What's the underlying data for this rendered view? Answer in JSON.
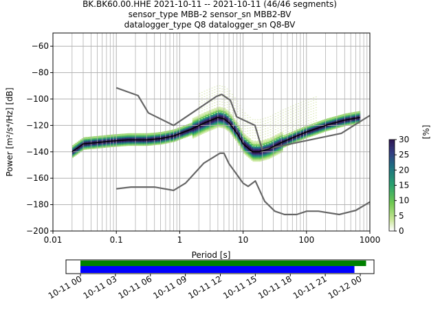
{
  "title_lines": [
    "BK.BK60.00.HHE   2021-10-11 -- 2021-10-11  (46/46 segments)",
    "sensor_type MBB-2 sensor_sn MBB2-BV",
    "datalogger_type Q8 datalogger_sn Q8-BV"
  ],
  "chart_data": {
    "type": "heatmap",
    "xlabel": "Period [s]",
    "ylabel": "Power [m²/s⁴/Hz] [dB]",
    "x_scale": "log",
    "xlim": [
      0.01,
      1000
    ],
    "ylim": [
      -200,
      -50
    ],
    "x_ticks": [
      0.01,
      0.1,
      1,
      10,
      100,
      1000
    ],
    "x_tick_labels": [
      "0.01",
      "0.1",
      "1",
      "10",
      "100",
      "1000"
    ],
    "y_ticks": [
      -200,
      -180,
      -160,
      -140,
      -120,
      -100,
      -80,
      -60
    ],
    "y_tick_labels": [
      "−200",
      "−180",
      "−160",
      "−140",
      "−120",
      "−100",
      "−80",
      "−60"
    ],
    "grid": true,
    "colorbar": {
      "label": "[%]",
      "range": [
        0,
        30
      ],
      "ticks": [
        0,
        5,
        10,
        15,
        20,
        25,
        30
      ],
      "tick_labels": [
        "0",
        "5",
        "10",
        "15",
        "20",
        "25",
        "30"
      ],
      "colormap": "pqlx (white-green-teal-purple)"
    },
    "mean_curve": {
      "color": "#000000",
      "period": [
        0.02,
        0.03,
        0.05,
        0.08,
        0.15,
        0.3,
        0.5,
        0.8,
        1.5,
        2.5,
        4,
        5,
        6,
        8,
        10,
        14,
        18,
        25,
        40,
        70,
        100,
        200,
        400,
        700
      ],
      "power": [
        -140,
        -134,
        -133,
        -132,
        -131,
        -131,
        -130,
        -128,
        -123,
        -118,
        -114,
        -115,
        -118,
        -126,
        -134,
        -140,
        -140,
        -138,
        -133,
        -128,
        -125,
        -120,
        -116,
        -114
      ]
    },
    "nhnm": {
      "color": "#666666",
      "period": [
        0.1,
        0.22,
        0.32,
        0.8,
        3.8,
        4.6,
        6.3,
        7.9,
        15.4,
        20,
        354.8,
        1000
      ],
      "power": [
        -91.5,
        -97.4,
        -110.5,
        -120,
        -98,
        -96.5,
        -101,
        -113.5,
        -120,
        -138.5,
        -126,
        -112.5
      ]
    },
    "nlnm": {
      "color": "#666666",
      "period": [
        0.1,
        0.17,
        0.4,
        0.8,
        1.24,
        2.4,
        4.3,
        5,
        6,
        10,
        12,
        15.6,
        21.9,
        31.6,
        45,
        70,
        101,
        154,
        328,
        600,
        1000
      ],
      "power": [
        -168,
        -166.7,
        -166.7,
        -169.2,
        -163.7,
        -148.6,
        -141.1,
        -141.1,
        -149,
        -163.8,
        -166.2,
        -162.1,
        -177.5,
        -185,
        -187.5,
        -187.5,
        -185,
        -185,
        -187.5,
        -184.4,
        -178
      ]
    },
    "coverage": {
      "x_tick_labels": [
        "10-11 00",
        "10-11 03",
        "10-11 06",
        "10-11 09",
        "10-11 12",
        "10-11 15",
        "10-11 18",
        "10-11 21",
        "10-12 00"
      ],
      "data_bar_color": "#0000ff",
      "psd_bar_color": "#008000",
      "data_span_hours": [
        0,
        23.5
      ],
      "psd_span_hours": [
        0,
        24.5
      ]
    }
  }
}
